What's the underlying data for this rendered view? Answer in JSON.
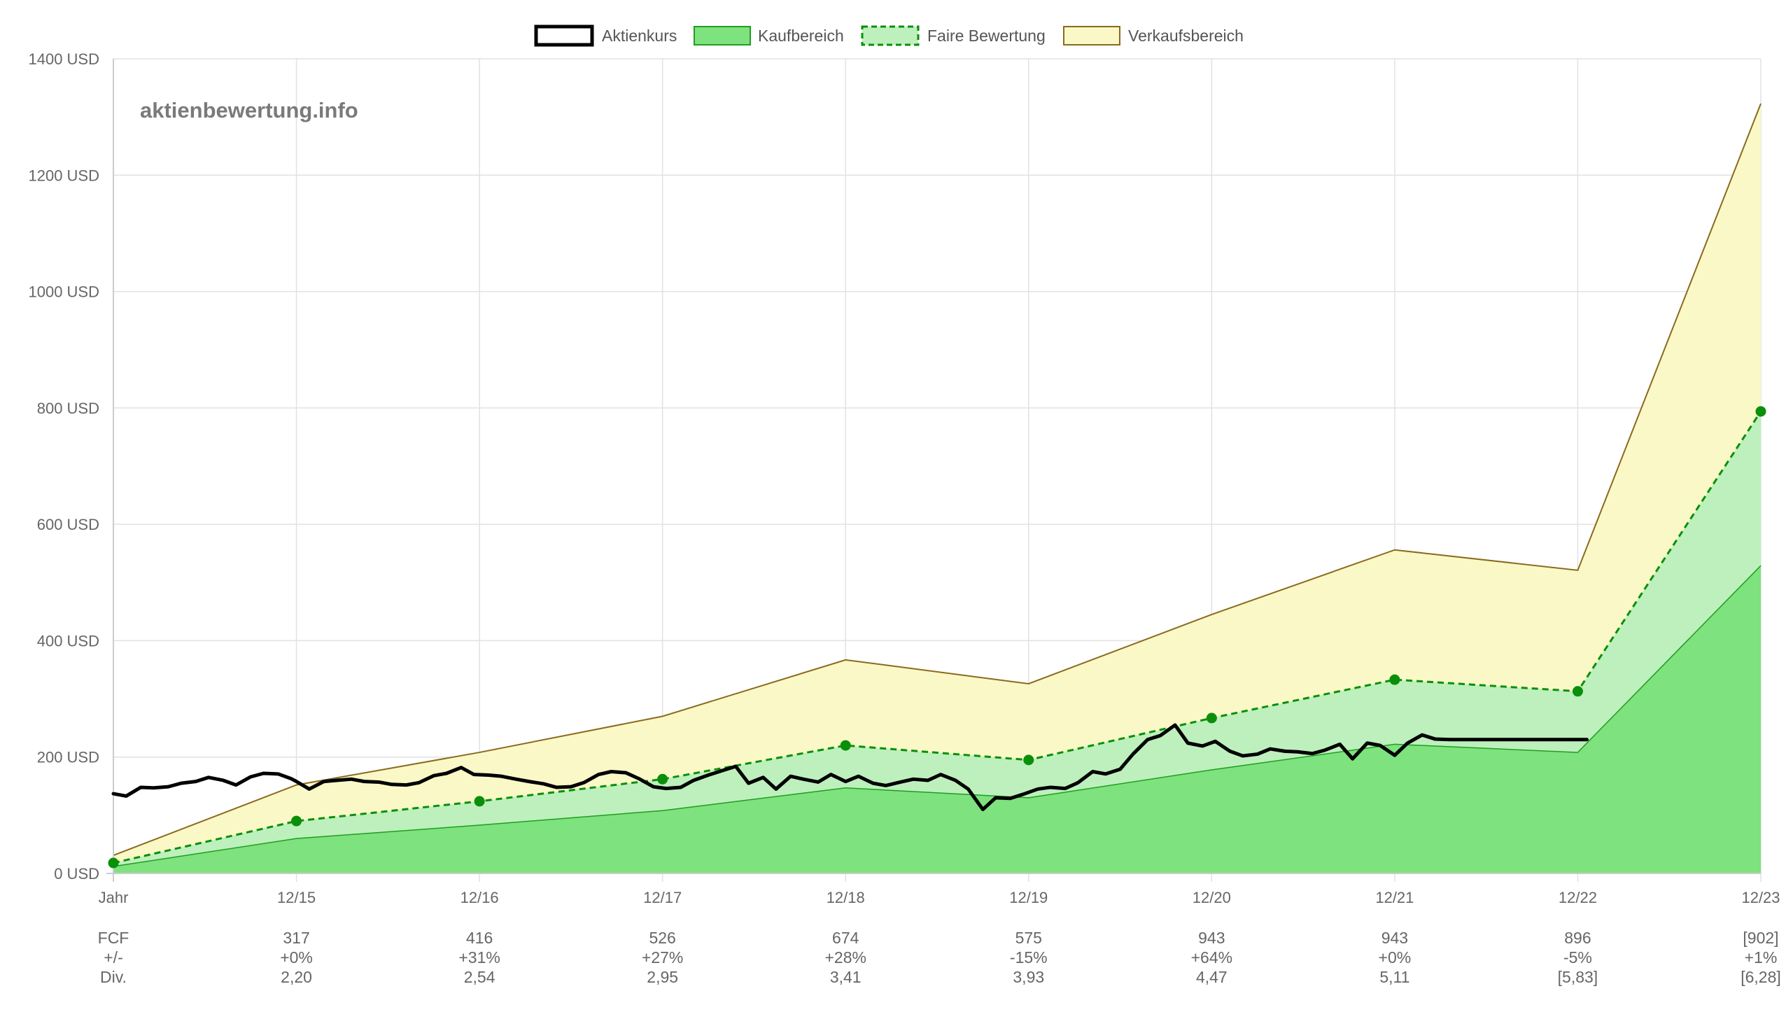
{
  "watermark": "aktienbewertung.info",
  "colors": {
    "price": "#000000",
    "buy_fill": "#7ee27e",
    "buy_stroke": "#1f9e1f",
    "fair_fill": "#bdf0bd",
    "fair_stroke": "#0a8f0a",
    "sell_fill": "#faf8c6",
    "sell_stroke": "#8a6a1e",
    "grid": "#e2e2e2"
  },
  "chart_data": {
    "type": "area",
    "title": "",
    "xlabel": "",
    "ylabel": "",
    "ylim": [
      0,
      1400
    ],
    "y_ticks": [
      0,
      200,
      400,
      600,
      800,
      1000,
      1200,
      1400
    ],
    "y_tick_labels": [
      "0 USD",
      "200 USD",
      "400 USD",
      "600 USD",
      "800 USD",
      "1000 USD",
      "1200 USD",
      "1400 USD"
    ],
    "x_labels": [
      "Jahr",
      "12/15",
      "12/16",
      "12/17",
      "12/18",
      "12/19",
      "12/20",
      "12/21",
      "12/22",
      "12/23"
    ],
    "grid": true,
    "legend_position": "top-center",
    "legend": [
      {
        "key": "price",
        "label": "Aktienkurs"
      },
      {
        "key": "buy",
        "label": "Kaufbereich"
      },
      {
        "key": "fair",
        "label": "Faire Bewertung"
      },
      {
        "key": "sell",
        "label": "Verkaufsbereich"
      }
    ],
    "series": [
      {
        "name": "Verkaufsbereich",
        "values": [
          31,
          152,
          208,
          270,
          367,
          326,
          445,
          556,
          521,
          1323
        ]
      },
      {
        "name": "Faire Bewertung",
        "values": [
          18,
          90,
          124,
          162,
          220,
          195,
          267,
          333,
          313,
          794
        ]
      },
      {
        "name": "Kaufbereich",
        "values": [
          12,
          60,
          83,
          108,
          147,
          130,
          178,
          222,
          208,
          529
        ]
      }
    ],
    "price": {
      "name": "Aktienkurs",
      "x": [
        0,
        0.07,
        0.15,
        0.22,
        0.3,
        0.37,
        0.45,
        0.52,
        0.6,
        0.67,
        0.75,
        0.82,
        0.9,
        0.97,
        1.0,
        1.07,
        1.15,
        1.22,
        1.3,
        1.37,
        1.45,
        1.52,
        1.6,
        1.67,
        1.75,
        1.82,
        1.9,
        1.97,
        2.05,
        2.12,
        2.2,
        2.27,
        2.35,
        2.42,
        2.5,
        2.57,
        2.65,
        2.72,
        2.8,
        2.87,
        2.95,
        3.02,
        3.1,
        3.17,
        3.25,
        3.32,
        3.4,
        3.47,
        3.55,
        3.62,
        3.7,
        3.77,
        3.85,
        3.92,
        4.0,
        4.07,
        4.15,
        4.22,
        4.3,
        4.37,
        4.45,
        4.52,
        4.6,
        4.67,
        4.75,
        4.82,
        4.9,
        4.97,
        5.05,
        5.12,
        5.2,
        5.27,
        5.35,
        5.42,
        5.5,
        5.57,
        5.65,
        5.72,
        5.8,
        5.87,
        5.95,
        6.02,
        6.1,
        6.17,
        6.25,
        6.32,
        6.4,
        6.47,
        6.55,
        6.62,
        6.7,
        6.77,
        6.85,
        6.92,
        7.0,
        7.07,
        7.15,
        7.22,
        7.3,
        7.37,
        7.45,
        7.52,
        7.6,
        7.67,
        7.75,
        7.82,
        7.9,
        7.97,
        8.05
      ],
      "values": [
        137,
        133,
        148,
        147,
        149,
        155,
        158,
        165,
        160,
        152,
        166,
        172,
        171,
        163,
        158,
        145,
        158,
        160,
        162,
        158,
        157,
        153,
        152,
        156,
        168,
        172,
        182,
        170,
        169,
        167,
        162,
        158,
        154,
        148,
        149,
        156,
        170,
        175,
        173,
        163,
        149,
        146,
        148,
        160,
        169,
        176,
        184,
        155,
        165,
        145,
        167,
        162,
        157,
        170,
        158,
        167,
        155,
        151,
        157,
        162,
        160,
        170,
        160,
        145,
        110,
        130,
        129,
        136,
        145,
        148,
        146,
        156,
        175,
        171,
        179,
        205,
        230,
        237,
        255,
        224,
        219,
        227,
        210,
        202,
        205,
        214,
        210,
        209,
        206,
        212,
        222,
        197,
        224,
        220,
        203,
        224,
        238,
        231,
        230,
        230,
        230,
        230,
        230,
        230,
        230,
        230,
        230,
        230,
        230
      ]
    },
    "table": {
      "rows": [
        {
          "label": "FCF",
          "values": [
            "317",
            "416",
            "526",
            "674",
            "575",
            "943",
            "943",
            "896",
            "[902]"
          ]
        },
        {
          "label": "+/-",
          "values": [
            "+0%",
            "+31%",
            "+27%",
            "+28%",
            "-15%",
            "+64%",
            "+0%",
            "-5%",
            "+1%"
          ]
        },
        {
          "label": "Div.",
          "values": [
            "2,20",
            "2,54",
            "2,95",
            "3,41",
            "3,93",
            "4,47",
            "5,11",
            "[5,83]",
            "[6,28]"
          ]
        }
      ]
    }
  }
}
